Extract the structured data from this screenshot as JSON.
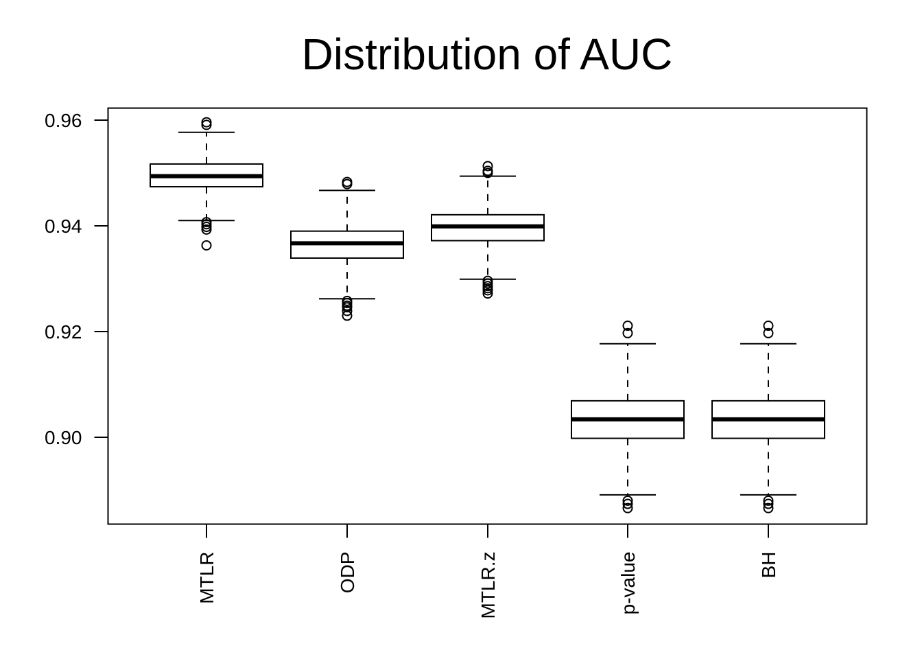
{
  "chart_data": {
    "type": "boxplot",
    "title": "Distribution of AUC",
    "xlabel": "",
    "ylabel": "",
    "ylim": [
      0.8835,
      0.9625
    ],
    "y_ticks": [
      "0.90",
      "0.92",
      "0.94",
      "0.96"
    ],
    "y_tick_values": [
      0.9,
      0.92,
      0.94,
      0.96
    ],
    "grid": false,
    "legend": "none",
    "colors": {
      "stroke": "#000000",
      "fill": "#ffffff",
      "background": "#ffffff"
    },
    "categories": [
      "MTLR",
      "ODP",
      "MTLR.z",
      "p-value",
      "BH"
    ],
    "boxes": [
      {
        "label": "MTLR",
        "whisker_low": 0.941,
        "q1": 0.9474,
        "median": 0.9494,
        "q3": 0.9517,
        "whisker_high": 0.9577,
        "outliers": [
          0.9596,
          0.9591,
          0.9407,
          0.9403,
          0.9398,
          0.9393,
          0.9363
        ]
      },
      {
        "label": "ODP",
        "whisker_low": 0.9262,
        "q1": 0.9339,
        "median": 0.9367,
        "q3": 0.939,
        "whisker_high": 0.9467,
        "outliers": [
          0.9483,
          0.9479,
          0.9258,
          0.9254,
          0.9249,
          0.9246,
          0.9239,
          0.923
        ]
      },
      {
        "label": "MTLR.z",
        "whisker_low": 0.9299,
        "q1": 0.9372,
        "median": 0.9399,
        "q3": 0.9421,
        "whisker_high": 0.9494,
        "outliers": [
          0.9513,
          0.9504,
          0.95,
          0.9296,
          0.9291,
          0.9286,
          0.9282,
          0.9278,
          0.9272
        ]
      },
      {
        "label": "p-value",
        "whisker_low": 0.8891,
        "q1": 0.8998,
        "median": 0.9034,
        "q3": 0.9069,
        "whisker_high": 0.9177,
        "outliers": [
          0.9211,
          0.9197,
          0.888,
          0.8874,
          0.8866
        ]
      },
      {
        "label": "BH",
        "whisker_low": 0.8891,
        "q1": 0.8998,
        "median": 0.9034,
        "q3": 0.9069,
        "whisker_high": 0.9177,
        "outliers": [
          0.9211,
          0.9197,
          0.888,
          0.8874,
          0.8866
        ]
      }
    ]
  }
}
